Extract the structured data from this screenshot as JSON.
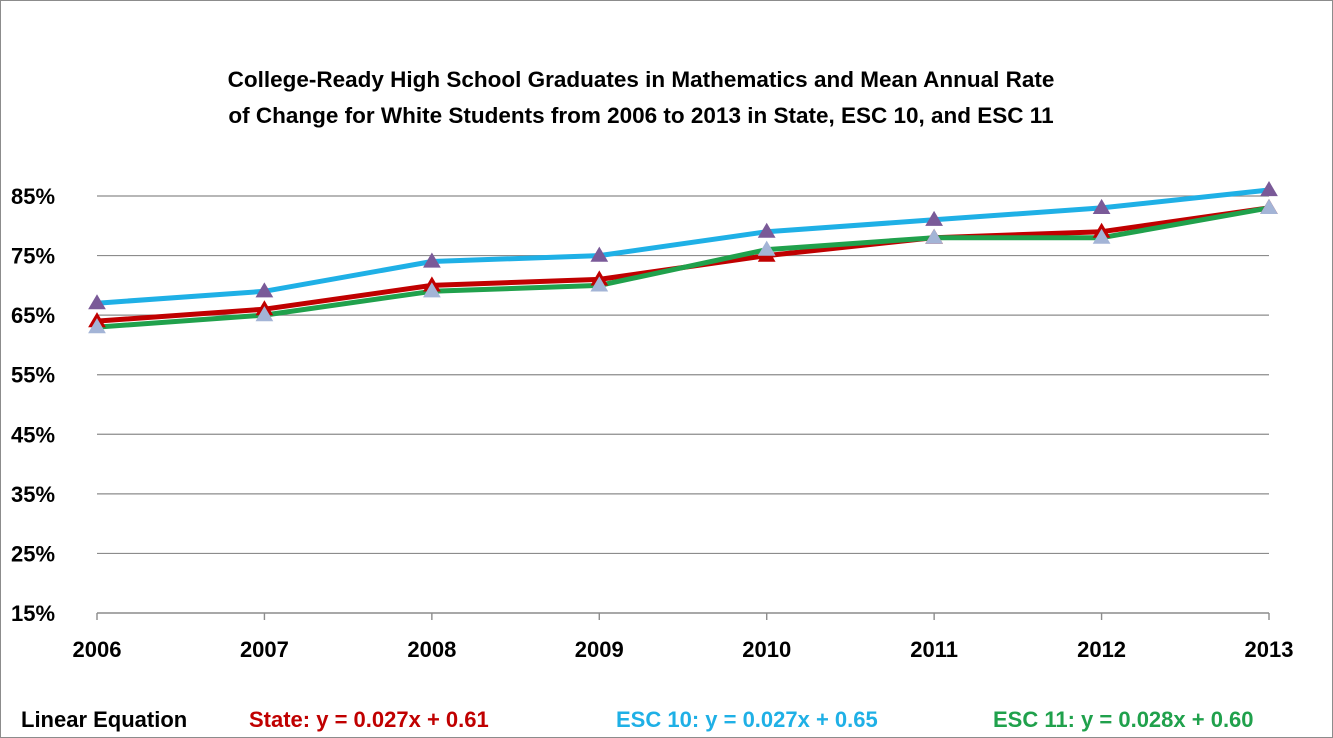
{
  "chart_data": {
    "type": "line",
    "title": [
      "College-Ready High School Graduates in Mathematics and Mean Annual Rate",
      "of Change for White Students from 2006 to 2013 in State, ESC 10, and ESC 11"
    ],
    "xlabel": "",
    "ylabel": "",
    "categories": [
      "2006",
      "2007",
      "2008",
      "2009",
      "2010",
      "2011",
      "2012",
      "2013"
    ],
    "ylim": [
      15,
      85
    ],
    "y_ticks": [
      15,
      25,
      35,
      45,
      55,
      65,
      75,
      85
    ],
    "y_tick_labels": [
      "15%",
      "25%",
      "35%",
      "45%",
      "55%",
      "65%",
      "75%",
      "85%"
    ],
    "y_unit": "%",
    "grid": true,
    "series": [
      {
        "key": "state",
        "values": [
          64,
          66,
          70,
          71,
          75,
          78,
          79,
          83
        ],
        "color": "#c00000",
        "marker": "triangle",
        "marker_color": "#c00000"
      },
      {
        "key": "esc10",
        "values": [
          67,
          69,
          74,
          75,
          79,
          81,
          83,
          86
        ],
        "color": "#1fb0e6",
        "marker": "triangle",
        "marker_color": "#7a5a98"
      },
      {
        "key": "esc11",
        "values": [
          63,
          65,
          69,
          70,
          76,
          78,
          78,
          83
        ],
        "color": "#20a14c",
        "marker": "triangle",
        "marker_color": "#a3b4d6"
      }
    ],
    "equations": {
      "heading": "Linear Equation",
      "items": [
        {
          "text": "State: y = 0.027x + 0.61",
          "color": "#c00000"
        },
        {
          "text": "ESC 10: y = 0.027x + 0.65",
          "color": "#1fb0e6"
        },
        {
          "text": "ESC 11: y = 0.028x + 0.60",
          "color": "#20a14c"
        }
      ]
    },
    "colors": {
      "gridline": "#8c8c8c",
      "axis": "#8c8c8c",
      "text": "#000000"
    }
  }
}
